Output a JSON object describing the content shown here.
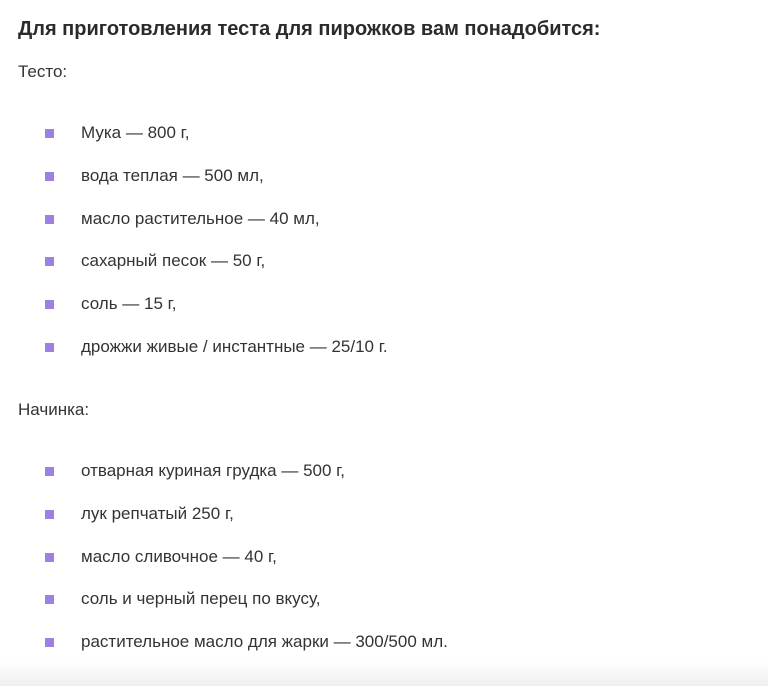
{
  "heading": "Для приготовления теста для пирожков вам понадобится:",
  "dough": {
    "label": "Тесто:",
    "items": [
      "Мука — 800 г,",
      "вода теплая — 500 мл,",
      "масло растительное — 40 мл,",
      "сахарный песок — 50 г,",
      "соль — 15 г,",
      "дрожжи живые / инстантные — 25/10 г."
    ]
  },
  "filling": {
    "label": "Начинка:",
    "items": [
      "отварная куриная грудка — 500 г,",
      "лук репчатый 250 г,",
      "масло сливочное — 40 г,",
      "соль и черный перец по вкусу,",
      "растительное масло для жарки — 300/500 мл."
    ]
  },
  "colors": {
    "bullet": "#9b82e0",
    "text": "#333333"
  }
}
